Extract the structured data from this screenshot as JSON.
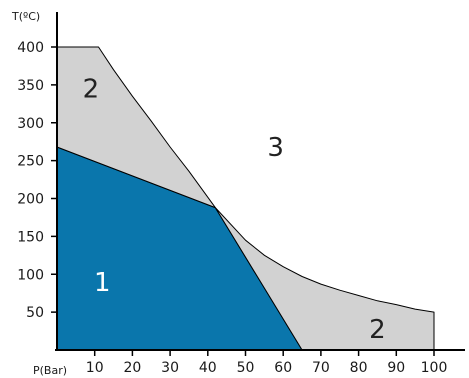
{
  "chart_data": {
    "type": "area",
    "xlabel": "P(Bar)",
    "ylabel": "T(ºC)",
    "xlim": [
      0,
      110
    ],
    "ylim": [
      0,
      420
    ],
    "x_ticks": [
      "10",
      "20",
      "30",
      "40",
      "50",
      "60",
      "70",
      "80",
      "90",
      "100"
    ],
    "y_ticks": [
      "50",
      "100",
      "150",
      "200",
      "250",
      "300",
      "350",
      "400"
    ],
    "regions": [
      {
        "label": "1",
        "fill": "#0a76ac",
        "label_color": "#ffffff",
        "label_at": [
          12,
          90
        ],
        "boundary": [
          [
            0,
            0
          ],
          [
            0,
            268
          ],
          [
            42,
            188
          ],
          [
            65,
            0
          ]
        ]
      },
      {
        "label": "2",
        "fill": "#d2d2d2",
        "label_color": "#222222",
        "label_at": [
          9,
          345
        ],
        "boundary": [
          [
            0,
            400
          ],
          [
            11,
            400
          ],
          [
            15,
            370
          ],
          [
            20,
            335
          ],
          [
            25,
            302
          ],
          [
            30,
            268
          ],
          [
            35,
            236
          ],
          [
            42,
            188
          ],
          [
            50,
            145
          ],
          [
            55,
            125
          ],
          [
            60,
            110
          ],
          [
            65,
            97
          ],
          [
            70,
            87
          ],
          [
            75,
            79
          ],
          [
            80,
            72
          ],
          [
            85,
            65
          ],
          [
            90,
            60
          ],
          [
            95,
            54
          ],
          [
            100,
            50
          ],
          [
            100,
            0
          ],
          [
            65,
            0
          ],
          [
            42,
            188
          ],
          [
            0,
            268
          ]
        ]
      },
      {
        "label": "2",
        "fill": "#d2d2d2",
        "label_color": "#222222",
        "label_at": [
          85,
          28
        ],
        "boundary": []
      },
      {
        "label": "3",
        "fill": "none",
        "label_color": "#222222",
        "label_at": [
          58,
          268
        ],
        "boundary": []
      }
    ]
  }
}
